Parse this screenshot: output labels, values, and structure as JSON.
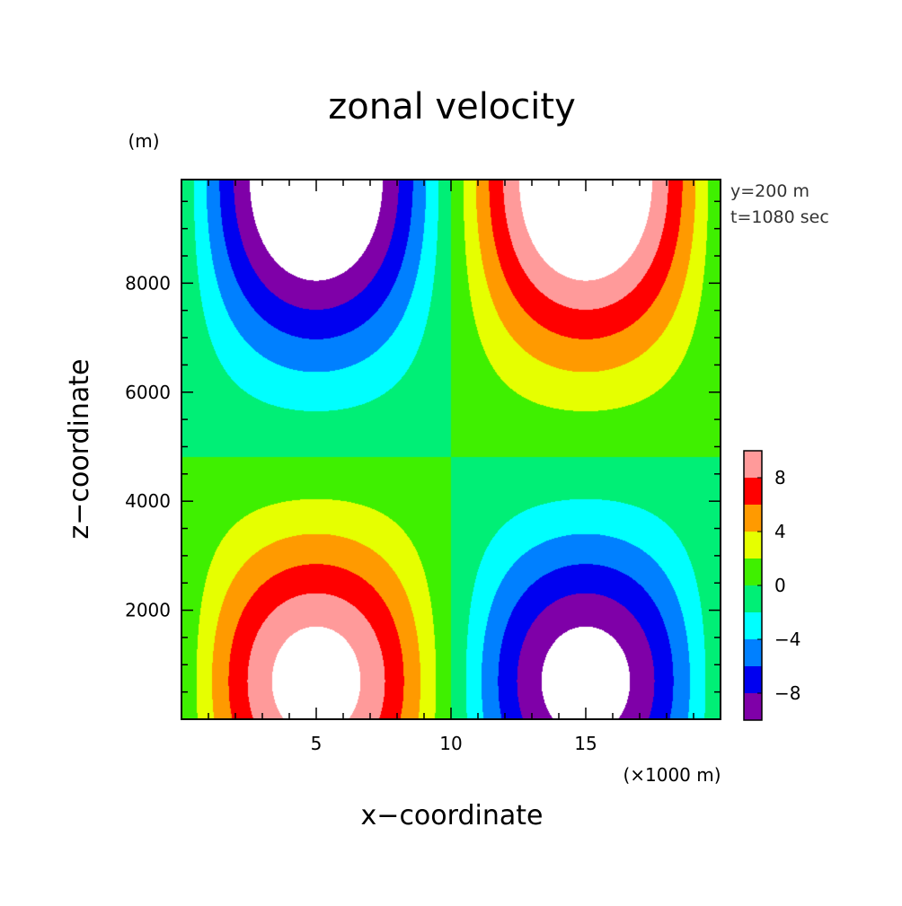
{
  "chart_data": {
    "type": "heatmap",
    "title": "zonal velocity",
    "xlabel": "x−coordinate",
    "ylabel": "z−coordinate",
    "x_unit": "(×1000 m)",
    "y_unit": "(m)",
    "xlim": [
      0,
      20
    ],
    "ylim": [
      0,
      9900
    ],
    "x_ticks": [
      "5",
      "10",
      "15"
    ],
    "y_ticks": [
      "2000",
      "4000",
      "6000",
      "8000"
    ],
    "annotations": [
      "y=200 m",
      "t=1080 sec"
    ],
    "legend_placement": "right",
    "levels": [
      -10,
      -8,
      -6,
      -4,
      -2,
      0,
      2,
      4,
      6,
      8,
      10
    ],
    "colorbar_labels": [
      "8",
      "4",
      "0",
      "−4",
      "−8"
    ],
    "colorbar_label_values": [
      8,
      4,
      0,
      -4,
      -8
    ],
    "colors": [
      "#7f00a8",
      "#0000f0",
      "#0080ff",
      "#00ffff",
      "#00ef76",
      "#3ff000",
      "#e6ff00",
      "#ff9a00",
      "#ff0000",
      "#ff9a9a"
    ],
    "beyond_range_color": "#ffffff",
    "field": {
      "description": "u(x,z) approximately A*sin(2*pi*x/20) * vertical profile (positive lower-left, negative upper-left, reversed on right)",
      "peak_lower": {
        "x": 5,
        "z": 700,
        "value": 11.5
      },
      "peak_upper": {
        "x": 5,
        "z": 9900,
        "value": -14
      }
    }
  }
}
